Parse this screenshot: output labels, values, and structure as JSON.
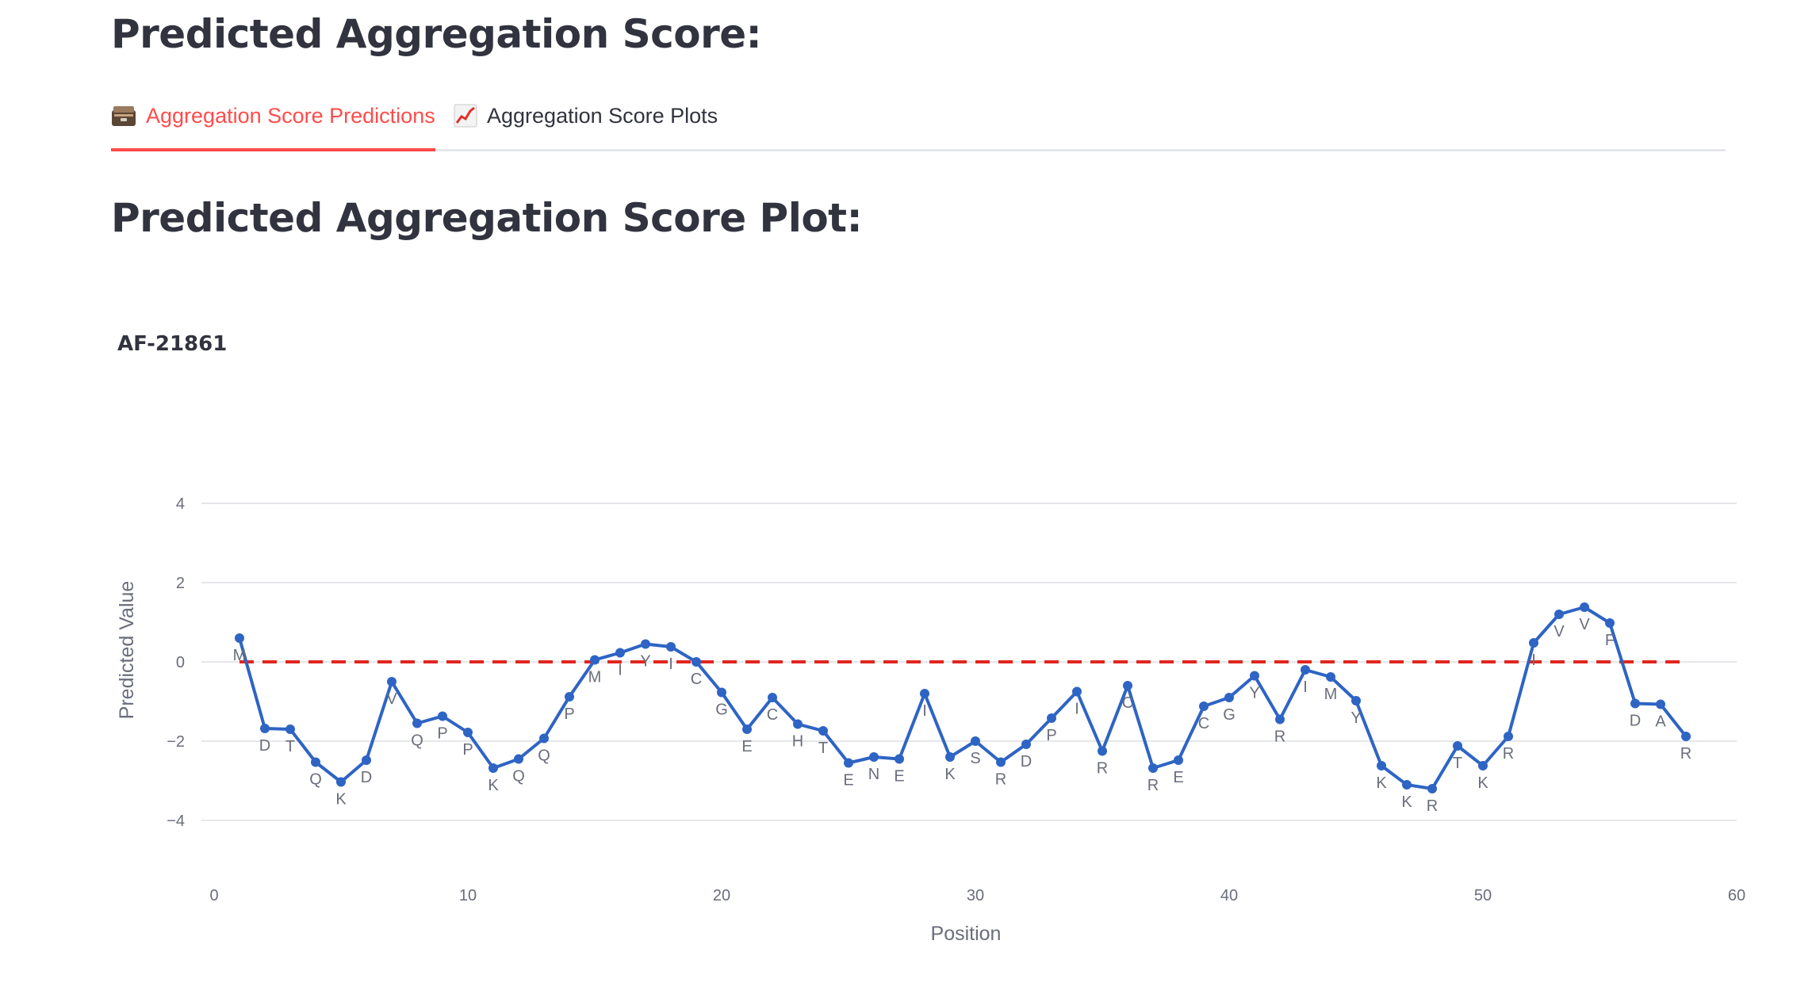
{
  "header": {
    "title": "Predicted Aggregation Score:"
  },
  "tabs": [
    {
      "label": "Aggregation Score Predictions",
      "icon": "card-file-box-icon",
      "active": true
    },
    {
      "label": "Aggregation Score Plots",
      "icon": "chart-increasing-icon",
      "active": false
    }
  ],
  "section": {
    "title": "Predicted Aggregation Score Plot:"
  },
  "colors": {
    "accent": "#ff4b4b",
    "line": "#2e64c4",
    "threshold": "#e0261e",
    "grid": "#e6e7ea"
  },
  "chart_data": {
    "type": "line",
    "title": "AF-21861",
    "xlabel": "Position",
    "ylabel": "Predicted Value",
    "xlim": [
      -0.5,
      60
    ],
    "ylim": [
      -5.2,
      5.8
    ],
    "xticks": [
      0,
      10,
      20,
      30,
      40,
      50,
      60
    ],
    "yticks": [
      4,
      2,
      0,
      -2,
      -4
    ],
    "ytick_labels": [
      "4",
      "2",
      "0",
      "−2",
      "−4"
    ],
    "grid": true,
    "threshold": {
      "value": 0,
      "x": [
        1,
        58
      ],
      "style": "dashed"
    },
    "x": [
      1,
      2,
      3,
      4,
      5,
      6,
      7,
      8,
      9,
      10,
      11,
      12,
      13,
      14,
      15,
      16,
      17,
      18,
      19,
      20,
      21,
      22,
      23,
      24,
      25,
      26,
      27,
      28,
      29,
      30,
      31,
      32,
      33,
      34,
      35,
      36,
      37,
      38,
      39,
      40,
      41,
      42,
      43,
      44,
      45,
      46,
      47,
      48,
      49,
      50,
      51,
      52,
      53,
      54,
      55,
      56,
      57,
      58
    ],
    "residues": [
      "M",
      "D",
      "T",
      "Q",
      "K",
      "D",
      "V",
      "Q",
      "P",
      "P",
      "K",
      "Q",
      "Q",
      "P",
      "M",
      "I",
      "Y",
      "I",
      "C",
      "G",
      "E",
      "C",
      "H",
      "T",
      "E",
      "N",
      "E",
      "I",
      "K",
      "S",
      "R",
      "D",
      "P",
      "I",
      "R",
      "C",
      "R",
      "E",
      "C",
      "G",
      "Y",
      "R",
      "I",
      "M",
      "Y",
      "K",
      "K",
      "R",
      "T",
      "K",
      "R",
      "I",
      "V",
      "V",
      "F",
      "D",
      "A",
      "R"
    ],
    "values": [
      0.6,
      -1.68,
      -1.7,
      -2.53,
      -3.03,
      -2.48,
      -0.5,
      -1.55,
      -1.37,
      -1.78,
      -2.68,
      -2.45,
      -1.93,
      -0.88,
      0.05,
      0.23,
      0.45,
      0.38,
      0.0,
      -0.77,
      -1.7,
      -0.9,
      -1.57,
      -1.74,
      -2.55,
      -2.4,
      -2.45,
      -0.8,
      -2.4,
      -2.0,
      -2.53,
      -2.08,
      -1.42,
      -0.75,
      -2.25,
      -0.6,
      -2.68,
      -2.48,
      -1.12,
      -0.9,
      -0.35,
      -1.45,
      -0.2,
      -0.38,
      -0.98,
      -2.62,
      -3.1,
      -3.2,
      -2.12,
      -2.62,
      -1.88,
      0.48,
      1.2,
      1.38,
      0.98,
      -1.05,
      -1.07,
      -1.88
    ]
  }
}
